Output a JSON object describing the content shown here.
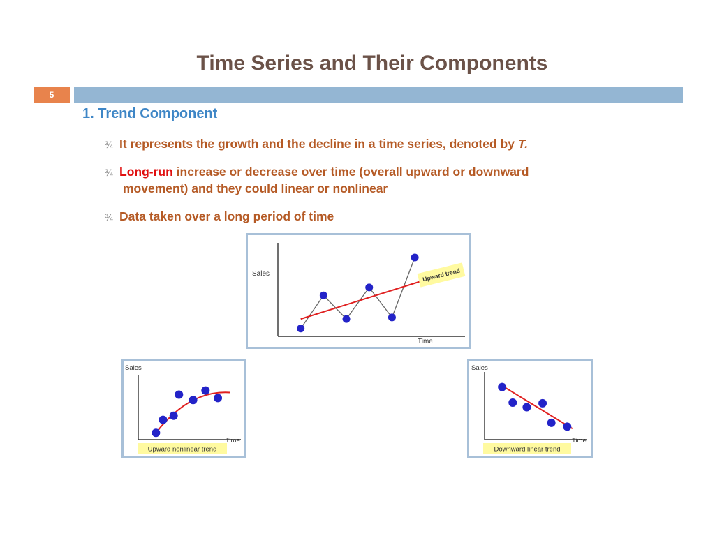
{
  "slide": {
    "title": "Time Series and Their Components",
    "number": "5",
    "section_heading": "1. Trend Component",
    "bullet_marker": "¾",
    "bullets": [
      {
        "text": "It represents the growth and the decline in a time series, denoted by ",
        "emphasis": "T."
      },
      {
        "highlight": "Long-run",
        "text": " increase or decrease over time (overall upward or downward",
        "text_cont": "movement) and they could linear or nonlinear"
      },
      {
        "text": "Data taken over a long period of time"
      }
    ]
  },
  "colors": {
    "title": "#6b5248",
    "accent": "#e8834c",
    "header_bar": "#94b6d3",
    "heading": "#3e86c6",
    "bullet_text": "#b55a25",
    "highlight": "#e01010",
    "points": "#2323c8",
    "trend_line": "#e02020",
    "label_bg": "#fffaa0"
  },
  "chart_data": [
    {
      "type": "line",
      "ylabel": "Sales",
      "xlabel": "Time",
      "trend_label": "Upward trend",
      "x": [
        1,
        2,
        3,
        4,
        5,
        6
      ],
      "y": [
        1.0,
        5.2,
        2.2,
        6.2,
        2.4,
        10.0
      ],
      "trend": {
        "kind": "linear",
        "from": [
          1,
          2.2
        ],
        "to": [
          6.5,
          7.2
        ]
      },
      "xlim": [
        0,
        8.2
      ],
      "ylim": [
        0,
        11.5
      ]
    },
    {
      "type": "scatter",
      "ylabel": "Sales",
      "xlabel": "Time",
      "trend_label": "Upward nonlinear trend",
      "x": [
        1,
        1.4,
        2.0,
        2.3,
        3.1,
        3.8,
        4.5
      ],
      "y": [
        1.0,
        2.9,
        3.5,
        6.6,
        5.8,
        7.2,
        6.1
      ],
      "trend": {
        "kind": "curve",
        "from": [
          1,
          1.0
        ],
        "to": [
          5.2,
          6.9
        ]
      },
      "xlim": [
        0,
        5.8
      ],
      "ylim": [
        0,
        9
      ]
    },
    {
      "type": "scatter",
      "ylabel": "Sales",
      "xlabel": "Time",
      "trend_label": "Downward linear trend",
      "x": [
        1,
        1.6,
        2.4,
        3.3,
        3.8,
        4.7
      ],
      "y": [
        8.1,
        5.7,
        5.0,
        5.6,
        2.6,
        2.0
      ],
      "trend": {
        "kind": "linear",
        "from": [
          1,
          8.3
        ],
        "to": [
          5.0,
          1.7
        ]
      },
      "xlim": [
        0,
        5.8
      ],
      "ylim": [
        0,
        10
      ]
    }
  ]
}
